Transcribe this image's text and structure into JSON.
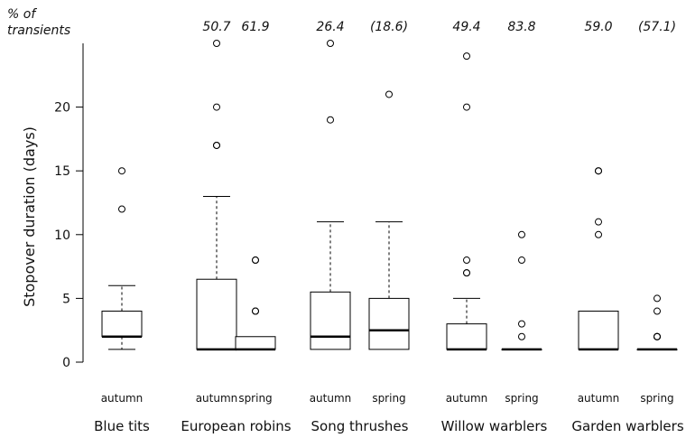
{
  "chart_data": {
    "type": "box",
    "ylabel": "Stopover duration (days)",
    "ylim": [
      0,
      25
    ],
    "yticks": [
      "0",
      "5",
      "10",
      "15",
      "20"
    ],
    "transients_label_line1": "% of",
    "transients_label_line2": "transients",
    "groups": [
      {
        "name": "Blue tits",
        "boxes": [
          {
            "season": "autumn",
            "transients": "",
            "whisker_low": 1,
            "q1": 2,
            "median": 2,
            "q3": 4,
            "whisker_high": 6,
            "outliers": [
              12,
              15
            ]
          }
        ]
      },
      {
        "name": "European robins",
        "boxes": [
          {
            "season": "autumn",
            "transients": "50.7",
            "whisker_low": 1,
            "q1": 1,
            "median": 1,
            "q3": 6.5,
            "whisker_high": 13,
            "outliers": [
              17,
              17,
              20,
              25
            ]
          },
          {
            "season": "spring",
            "transients": "61.9",
            "whisker_low": 1,
            "q1": 1,
            "median": 1,
            "q3": 2,
            "whisker_high": 2,
            "outliers": [
              4,
              4,
              8,
              8
            ]
          }
        ]
      },
      {
        "name": "Song thrushes",
        "boxes": [
          {
            "season": "autumn",
            "transients": "26.4",
            "whisker_low": 1,
            "q1": 1,
            "median": 2,
            "q3": 5.5,
            "whisker_high": 11,
            "outliers": [
              19,
              25
            ]
          },
          {
            "season": "spring",
            "transients": "(18.6)",
            "whisker_low": 1,
            "q1": 1,
            "median": 2.5,
            "q3": 5,
            "whisker_high": 11,
            "outliers": [
              21
            ]
          }
        ]
      },
      {
        "name": "Willow warblers",
        "boxes": [
          {
            "season": "autumn",
            "transients": "49.4",
            "whisker_low": 1,
            "q1": 1,
            "median": 1,
            "q3": 3,
            "whisker_high": 5,
            "outliers": [
              7,
              7,
              8,
              20,
              24
            ]
          },
          {
            "season": "spring",
            "transients": "83.8",
            "whisker_low": 1,
            "q1": 1,
            "median": 1,
            "q3": 1,
            "whisker_high": 1,
            "outliers": [
              2,
              3,
              8,
              10
            ]
          }
        ]
      },
      {
        "name": "Garden warblers",
        "boxes": [
          {
            "season": "autumn",
            "transients": "59.0",
            "whisker_low": 1,
            "q1": 1,
            "median": 1,
            "q3": 4,
            "whisker_high": 4,
            "outliers": [
              10,
              11,
              15,
              15
            ]
          },
          {
            "season": "spring",
            "transients": "(57.1)",
            "whisker_low": 1,
            "q1": 1,
            "median": 1,
            "q3": 1,
            "whisker_high": 1,
            "outliers": [
              2,
              2,
              2,
              4,
              5
            ]
          }
        ]
      }
    ]
  }
}
